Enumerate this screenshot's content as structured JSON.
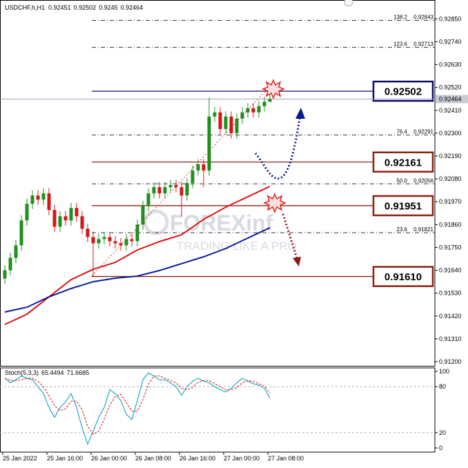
{
  "chart_data": [
    {
      "type": "candlestick",
      "title": "USDCHF,h,H1",
      "categories": [
        "25 Jan 2022",
        null,
        null,
        null,
        null,
        null,
        null,
        null,
        "25 Jan 16:00",
        null,
        null,
        null,
        null,
        null,
        null,
        null,
        "26 Jan 00:00",
        null,
        null,
        null,
        null,
        null,
        null,
        null,
        "26 Jan 08:00",
        null,
        null,
        null,
        null,
        null,
        null,
        null,
        "26 Jan 16:00",
        null,
        null,
        null,
        null,
        null,
        null,
        null,
        "27 Jan 00:00",
        null,
        null,
        null,
        null,
        null,
        null,
        null,
        "27 Jan 08:00"
      ],
      "open": [
        0.916,
        0.9164,
        0.917,
        0.9176,
        0.9188,
        0.9196,
        0.92,
        0.9198,
        0.9201,
        0.9193,
        0.9185,
        0.919,
        0.9188,
        0.9194,
        0.919,
        0.9184,
        0.918,
        0.9177,
        0.9179,
        0.918,
        0.9178,
        0.9177,
        0.9176,
        0.9179,
        0.9178,
        0.9186,
        0.9195,
        0.9201,
        0.9204,
        0.9201,
        0.9204,
        0.9205,
        0.9204,
        0.92,
        0.9206,
        0.9212,
        0.9215,
        0.9212,
        0.9238,
        0.924,
        0.9232,
        0.9238,
        0.923,
        0.9237,
        0.924,
        0.9242,
        0.924,
        0.9243,
        0.92451
      ],
      "high": [
        0.91665,
        0.91725,
        0.91785,
        0.91905,
        0.91985,
        0.92025,
        0.92025,
        0.92035,
        0.92035,
        0.91955,
        0.91925,
        0.91925,
        0.91965,
        0.91965,
        0.91925,
        0.91865,
        0.91825,
        0.91815,
        0.91825,
        0.91825,
        0.91805,
        0.91795,
        0.91815,
        0.91815,
        0.91885,
        0.91975,
        0.92035,
        0.92065,
        0.92065,
        0.92065,
        0.92075,
        0.92075,
        0.92065,
        0.92085,
        0.92145,
        0.92175,
        0.92175,
        0.9247,
        0.92425,
        0.92425,
        0.92405,
        0.92405,
        0.92395,
        0.92425,
        0.92445,
        0.92445,
        0.92455,
        0.92476,
        0.92502
      ],
      "low": [
        0.91575,
        0.91615,
        0.91675,
        0.91735,
        0.91855,
        0.91935,
        0.91955,
        0.91955,
        0.91905,
        0.91825,
        0.91825,
        0.91855,
        0.91855,
        0.91875,
        0.91815,
        0.91775,
        0.9161,
        0.91745,
        0.91765,
        0.91755,
        0.91745,
        0.91735,
        0.91735,
        0.91755,
        0.91755,
        0.91835,
        0.91925,
        0.91985,
        0.91985,
        0.91985,
        0.92015,
        0.92015,
        0.919,
        0.91975,
        0.92035,
        0.92095,
        0.9204,
        0.92095,
        0.92355,
        0.92295,
        0.92295,
        0.92275,
        0.92275,
        0.92345,
        0.92375,
        0.92375,
        0.92375,
        0.92405,
        0.9245
      ],
      "close": [
        0.9164,
        0.917,
        0.9176,
        0.9188,
        0.9196,
        0.92,
        0.9198,
        0.9201,
        0.9193,
        0.9185,
        0.919,
        0.9188,
        0.9194,
        0.919,
        0.9184,
        0.918,
        0.9177,
        0.9179,
        0.918,
        0.9178,
        0.9177,
        0.9176,
        0.9179,
        0.9178,
        0.9186,
        0.9195,
        0.9201,
        0.9204,
        0.9201,
        0.9204,
        0.9205,
        0.9204,
        0.92,
        0.9206,
        0.9212,
        0.9215,
        0.9212,
        0.9238,
        0.924,
        0.9232,
        0.9238,
        0.923,
        0.9237,
        0.924,
        0.9242,
        0.924,
        0.9243,
        0.92451,
        0.92464
      ],
      "up_color": "#1f8f1f",
      "down_color": "#d01818",
      "series": [
        {
          "color": "#e01010",
          "x": [
            0,
            4,
            8,
            12,
            16,
            20,
            24,
            28,
            32,
            36,
            40,
            44,
            48
          ],
          "values": [
            0.91379,
            0.91429,
            0.91512,
            0.91595,
            0.91645,
            0.91678,
            0.91738,
            0.91778,
            0.91811,
            0.91885,
            0.91944,
            0.91994,
            0.92044
          ]
        },
        {
          "color": "#0a1a9a",
          "x": [
            0,
            4,
            8,
            12,
            16,
            20,
            24,
            28,
            32,
            36,
            40,
            44,
            48
          ],
          "values": [
            0.91439,
            0.91462,
            0.91512,
            0.91552,
            0.91585,
            0.91602,
            0.91612,
            0.91639,
            0.91672,
            0.91705,
            0.91745,
            0.91795,
            0.91845
          ]
        }
      ],
      "ylim": [
        0.9118,
        0.92941
      ],
      "yticks": [
        {
          "value": 0.9285,
          "label": "0.92850"
        },
        {
          "value": 0.9274,
          "label": "0.92740"
        },
        {
          "value": 0.9263,
          "label": "0.92630"
        },
        {
          "value": 0.9252,
          "label": "0.92520"
        },
        {
          "value": 0.9241,
          "label": "0.92410"
        },
        {
          "value": 0.923,
          "label": "0.92300"
        },
        {
          "value": 0.9219,
          "label": "0.92190"
        },
        {
          "value": 0.9208,
          "label": "0.92080"
        },
        {
          "value": 0.9197,
          "label": "0.91970"
        },
        {
          "value": 0.9186,
          "label": "0.91860"
        },
        {
          "value": 0.9175,
          "label": "0.91750"
        },
        {
          "value": 0.9164,
          "label": "0.91640"
        },
        {
          "value": 0.9153,
          "label": "0.91530"
        },
        {
          "value": 0.9142,
          "label": "0.91420"
        },
        {
          "value": 0.9131,
          "label": "0.91310"
        },
        {
          "value": 0.912,
          "label": "0.91200"
        }
      ],
      "levels": [
        {
          "value": 0.92502,
          "label": "0.92502",
          "color": "#0a0a6a"
        },
        {
          "value": 0.92161,
          "label": "0.92161",
          "color": "#8b2010"
        },
        {
          "value": 0.91951,
          "label": "0.91951",
          "color": "#8b2010"
        },
        {
          "value": 0.9161,
          "label": "0.91610",
          "color": "#8b2010"
        }
      ],
      "fib_levels": [
        {
          "ratio": "138.2",
          "value": 0.92843
        },
        {
          "ratio": "123.6",
          "value": 0.92713
        },
        {
          "ratio": "76.4",
          "value": 0.92291
        },
        {
          "ratio": "50.0",
          "value": 0.92056
        },
        {
          "ratio": "23.6",
          "value": 0.91821
        }
      ],
      "watermark": {
        "brand": "FOREXinf",
        "tagline": "TRADING LIKE A PRO"
      }
    },
    {
      "type": "stochastic",
      "title": "Stoch(5,3,3)",
      "series": [
        {
          "color": "#20a8c8",
          "style": "solid",
          "values": [
            91,
            85,
            89,
            94,
            91,
            89,
            80,
            71,
            53,
            40,
            53,
            60,
            71,
            53,
            26,
            5,
            22,
            40,
            53,
            76,
            71,
            62,
            44,
            37,
            62,
            89,
            98,
            94,
            89,
            89,
            85,
            80,
            69,
            80,
            87,
            91,
            87,
            85,
            80,
            76,
            73,
            78,
            85,
            91,
            87,
            84,
            82,
            78,
            65.4494
          ]
        },
        {
          "color": "#e03030",
          "style": "dashed",
          "values": [
            91,
            88,
            88,
            89,
            91,
            91,
            87,
            80,
            68,
            55,
            49,
            51,
            61,
            61,
            50,
            28,
            18,
            22,
            38,
            56,
            67,
            70,
            59,
            48,
            48,
            63,
            83,
            94,
            94,
            91,
            88,
            85,
            78,
            76,
            79,
            86,
            88,
            88,
            84,
            80,
            76,
            76,
            79,
            85,
            88,
            87,
            84,
            81,
            71.6685
          ]
        }
      ],
      "ylim": [
        0,
        100
      ],
      "yticks": [
        100,
        80,
        20,
        0
      ],
      "levels": [
        80,
        20
      ]
    }
  ]
}
